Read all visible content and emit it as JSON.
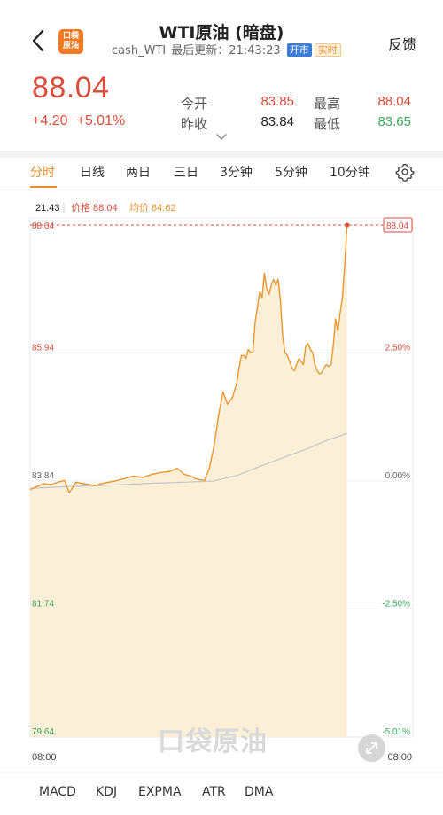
{
  "header": {
    "title": "WTI原油 (暗盘)",
    "symbol": "cash_WTI",
    "updated": "最后更新：21:43:23",
    "badge_open": "开市",
    "badge_realtime": "实时",
    "feedback": "反馈",
    "logo_line1": "口袋",
    "logo_line2": "原油"
  },
  "quote": {
    "price": "88.04",
    "change": "+4.20",
    "change_pct": "+5.01%",
    "open_label": "今开",
    "open": "83.85",
    "prev_close_label": "昨收",
    "prev_close": "83.84",
    "high_label": "最高",
    "high": "88.04",
    "low_label": "最低",
    "low": "83.65"
  },
  "tabs": [
    "分时",
    "日线",
    "两日",
    "三日",
    "3分钟",
    "5分钟",
    "10分钟"
  ],
  "active_tab": 0,
  "indicator_tabs": [
    "MACD",
    "KDJ",
    "EXPMA",
    "ATR",
    "DMA"
  ],
  "watermark": "口袋原油",
  "colors": {
    "up": "#d94e3c",
    "down": "#3aa85a",
    "accent": "#e88d2a",
    "price_line": "#e8962f",
    "area_fill": "#fcefd7",
    "avg_line": "#c8c8c8"
  },
  "icons": {
    "back": "chevron-left-icon",
    "settings": "gear-icon",
    "expand": "chevron-down-icon",
    "zoom": "expand-arrows-icon"
  },
  "chart_data": {
    "type": "area",
    "cursor": {
      "time": "21:43",
      "price_label": "价格 88.04",
      "avg_label": "均价 84.62"
    },
    "y_ticks_left": [
      "88.04",
      "85.94",
      "83.84",
      "81.74",
      "79.64"
    ],
    "y_ticks_right": [
      "88.04",
      "2.50%",
      "0.00%",
      "-2.50%",
      "-5.01%"
    ],
    "y_tick_values": [
      88.04,
      85.94,
      83.84,
      81.74,
      79.64
    ],
    "ylim": [
      79.64,
      88.04
    ],
    "baseline": 83.84,
    "x_labels": [
      "08:00",
      "08:00"
    ],
    "xlim": [
      0,
      100
    ],
    "price": {
      "x": [
        0,
        1.8,
        3.6,
        5.4,
        7.2,
        9.0,
        10.2,
        12.0,
        13.8,
        15.6,
        16.8,
        18.6,
        20.4,
        22.2,
        24.6,
        27.0,
        29.4,
        31.8,
        34.2,
        36.6,
        38.4,
        40.2,
        42.0,
        43.2,
        44.4,
        45.6,
        46.8,
        48.0,
        49.2,
        50.4,
        51.6,
        52.8,
        54.0,
        54.6,
        55.2,
        55.8,
        56.4,
        57.0,
        57.6,
        58.2,
        58.8,
        59.4,
        60.0,
        60.6,
        61.2,
        61.8,
        62.4,
        63.0,
        63.6,
        64.2,
        64.8,
        65.4,
        66.0,
        66.6,
        67.2,
        67.8,
        68.4,
        69.0,
        69.6,
        70.2,
        70.8,
        71.4,
        72.0,
        72.6,
        73.2,
        73.8,
        74.4,
        75.0,
        75.6,
        76.2,
        76.8,
        77.4,
        78.0,
        78.6,
        79.2,
        79.8,
        80.4,
        81.0,
        81.6,
        82.2,
        82.8
      ],
      "y": [
        83.7,
        83.75,
        83.8,
        83.78,
        83.82,
        83.85,
        83.65,
        83.82,
        83.8,
        83.78,
        83.76,
        83.8,
        83.82,
        83.84,
        83.88,
        83.92,
        83.9,
        83.95,
        83.98,
        84.0,
        84.05,
        83.95,
        83.92,
        83.88,
        83.86,
        83.85,
        84.05,
        84.4,
        84.9,
        85.3,
        85.1,
        85.2,
        85.45,
        85.7,
        85.9,
        85.9,
        85.85,
        86.0,
        85.95,
        85.95,
        86.45,
        86.7,
        86.95,
        86.85,
        87.25,
        87.0,
        86.9,
        87.05,
        87.15,
        87.05,
        87.15,
        86.8,
        86.2,
        85.95,
        85.9,
        85.8,
        85.7,
        85.65,
        85.75,
        85.85,
        85.8,
        85.75,
        86.05,
        86.1,
        86.0,
        85.95,
        85.75,
        85.65,
        85.6,
        85.62,
        85.7,
        85.75,
        85.72,
        85.75,
        86.05,
        86.5,
        86.3,
        86.6,
        86.85,
        87.4,
        88.04
      ]
    },
    "avg": {
      "x": [
        0,
        10,
        20,
        30,
        40,
        48,
        54,
        60,
        66,
        72,
        78,
        82.8
      ],
      "y": [
        83.72,
        83.75,
        83.77,
        83.8,
        83.82,
        83.84,
        83.93,
        84.08,
        84.22,
        84.36,
        84.52,
        84.62
      ]
    }
  }
}
